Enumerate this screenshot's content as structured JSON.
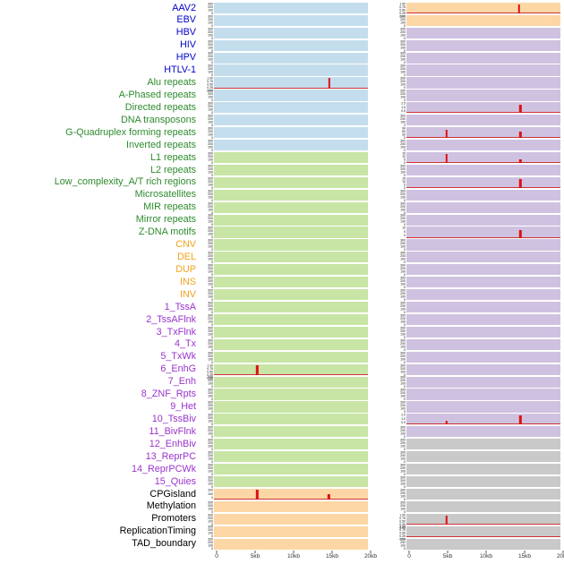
{
  "colors": {
    "label": {
      "virus": "#0000cc",
      "repeat": "#2d8a2d",
      "sv": "#f2a11c",
      "chromatin": "#9933cc",
      "other": "#000000"
    },
    "track_bg": {
      "blue": "#c4dded",
      "green": "#c8e5a5",
      "orange": "#fcd7a5",
      "purple": "#cfc2e0",
      "gray": "#c9c9c9"
    },
    "spike": "#dd1111",
    "baseline": "#cc3333"
  },
  "tick_sets": {
    "frac": [
      "1.00",
      "0.75",
      "0.50",
      "0.25",
      "0.00"
    ],
    "c300": [
      "300",
      "200",
      "100",
      "0"
    ],
    "c200": [
      "200",
      "100",
      "0"
    ],
    "s25": [
      "2.5",
      "1.5",
      "0.5"
    ],
    "s90": [
      "90",
      "60",
      "30",
      "0"
    ],
    "s15": [
      "15",
      "10",
      "5",
      "0"
    ],
    "s10": [
      "10",
      "5",
      "0"
    ],
    "s20": [
      "2.0",
      "1.0",
      "0.0"
    ]
  },
  "chart_data": {
    "type": "bar",
    "subtype": "genomic-feature-signal-tracks",
    "x_range_kb": [
      0,
      20
    ],
    "x_axis": {
      "ticks": [
        {
          "pos": 0,
          "label": "0"
        },
        {
          "pos": 5,
          "label": "5kb"
        },
        {
          "pos": 10,
          "label": "10kb"
        },
        {
          "pos": 15,
          "label": "15kb"
        },
        {
          "pos": 20,
          "label": "20kb"
        }
      ]
    },
    "rows": [
      {
        "label": "AAV2",
        "group": "virus",
        "left": {
          "bg": "blue",
          "ticks": "c300",
          "spikes": []
        },
        "right": {
          "bg": "orange",
          "ticks": "frac",
          "spikes": [
            {
              "x": 14.6,
              "h": 0.85
            }
          ]
        }
      },
      {
        "label": "EBV",
        "group": "virus",
        "left": {
          "bg": "blue",
          "ticks": "c300",
          "spikes": []
        },
        "right": {
          "bg": "orange",
          "ticks": "c300",
          "spikes": []
        }
      },
      {
        "label": "HBV",
        "group": "virus",
        "left": {
          "bg": "blue",
          "ticks": "c300",
          "spikes": []
        },
        "right": {
          "bg": "purple",
          "ticks": "c300",
          "spikes": []
        }
      },
      {
        "label": "HIV",
        "group": "virus",
        "left": {
          "bg": "blue",
          "ticks": "c300",
          "spikes": []
        },
        "right": {
          "bg": "purple",
          "ticks": "c300",
          "spikes": []
        }
      },
      {
        "label": "HPV",
        "group": "virus",
        "left": {
          "bg": "blue",
          "ticks": "c300",
          "spikes": []
        },
        "right": {
          "bg": "purple",
          "ticks": "c300",
          "spikes": []
        }
      },
      {
        "label": "HTLV-1",
        "group": "virus",
        "left": {
          "bg": "blue",
          "ticks": "c300",
          "spikes": []
        },
        "right": {
          "bg": "purple",
          "ticks": "c300",
          "spikes": []
        }
      },
      {
        "label": "Alu repeats",
        "group": "repeat",
        "left": {
          "bg": "blue",
          "ticks": "frac",
          "spikes": [
            {
              "x": 15.0,
              "h": 0.92
            }
          ]
        },
        "right": {
          "bg": "purple",
          "ticks": "c300",
          "spikes": []
        }
      },
      {
        "label": "A-Phased repeats",
        "group": "repeat",
        "left": {
          "bg": "blue",
          "ticks": "c300",
          "spikes": []
        },
        "right": {
          "bg": "purple",
          "ticks": "c300",
          "spikes": []
        }
      },
      {
        "label": "Directed repeats",
        "group": "repeat",
        "left": {
          "bg": "blue",
          "ticks": "c300",
          "spikes": []
        },
        "right": {
          "bg": "purple",
          "ticks": "s25",
          "spikes": [
            {
              "x": 14.8,
              "h": 0.8
            }
          ]
        }
      },
      {
        "label": "DNA transposons",
        "group": "repeat",
        "left": {
          "bg": "blue",
          "ticks": "c300",
          "spikes": []
        },
        "right": {
          "bg": "purple",
          "ticks": "c300",
          "spikes": []
        }
      },
      {
        "label": "G-Quadruplex forming repeats",
        "group": "repeat",
        "left": {
          "bg": "blue",
          "ticks": "c300",
          "spikes": []
        },
        "right": {
          "bg": "purple",
          "ticks": "s90",
          "spikes": [
            {
              "x": 5.2,
              "h": 0.8
            },
            {
              "x": 14.8,
              "h": 0.62
            }
          ]
        }
      },
      {
        "label": "Inverted repeats",
        "group": "repeat",
        "left": {
          "bg": "blue",
          "ticks": "c300",
          "spikes": []
        },
        "right": {
          "bg": "purple",
          "ticks": "c300",
          "spikes": []
        }
      },
      {
        "label": "L1 repeats",
        "group": "repeat",
        "left": {
          "bg": "green",
          "ticks": "c300",
          "spikes": []
        },
        "right": {
          "bg": "purple",
          "ticks": "s15",
          "spikes": [
            {
              "x": 5.2,
              "h": 0.8
            },
            {
              "x": 14.8,
              "h": 0.3
            }
          ]
        }
      },
      {
        "label": "L2 repeats",
        "group": "repeat",
        "left": {
          "bg": "green",
          "ticks": "c300",
          "spikes": []
        },
        "right": {
          "bg": "purple",
          "ticks": "c300",
          "spikes": []
        }
      },
      {
        "label": "Low_complexity_A/T rich regions",
        "group": "repeat",
        "left": {
          "bg": "green",
          "ticks": "c300",
          "spikes": []
        },
        "right": {
          "bg": "purple",
          "ticks": "s15",
          "spikes": [
            {
              "x": 14.8,
              "h": 0.8
            }
          ]
        }
      },
      {
        "label": "Microsatellites",
        "group": "repeat",
        "left": {
          "bg": "green",
          "ticks": "c300",
          "spikes": []
        },
        "right": {
          "bg": "purple",
          "ticks": "c300",
          "spikes": []
        }
      },
      {
        "label": "MIR repeats",
        "group": "repeat",
        "left": {
          "bg": "green",
          "ticks": "c300",
          "spikes": []
        },
        "right": {
          "bg": "purple",
          "ticks": "c300",
          "spikes": []
        }
      },
      {
        "label": "Mirror repeats",
        "group": "repeat",
        "left": {
          "bg": "green",
          "ticks": "c300",
          "spikes": []
        },
        "right": {
          "bg": "purple",
          "ticks": "c300",
          "spikes": []
        }
      },
      {
        "label": "Z-DNA motifs",
        "group": "repeat",
        "left": {
          "bg": "green",
          "ticks": "c300",
          "spikes": []
        },
        "right": {
          "bg": "purple",
          "ticks": "s10",
          "spikes": [
            {
              "x": 14.8,
              "h": 0.75
            }
          ]
        }
      },
      {
        "label": "CNV",
        "group": "sv",
        "left": {
          "bg": "green",
          "ticks": "c300",
          "spikes": []
        },
        "right": {
          "bg": "purple",
          "ticks": "c300",
          "spikes": []
        }
      },
      {
        "label": "DEL",
        "group": "sv",
        "left": {
          "bg": "green",
          "ticks": "c300",
          "spikes": []
        },
        "right": {
          "bg": "purple",
          "ticks": "c300",
          "spikes": []
        }
      },
      {
        "label": "DUP",
        "group": "sv",
        "left": {
          "bg": "green",
          "ticks": "c300",
          "spikes": []
        },
        "right": {
          "bg": "purple",
          "ticks": "c300",
          "spikes": []
        }
      },
      {
        "label": "INS",
        "group": "sv",
        "left": {
          "bg": "green",
          "ticks": "c300",
          "spikes": []
        },
        "right": {
          "bg": "purple",
          "ticks": "c300",
          "spikes": []
        }
      },
      {
        "label": "INV",
        "group": "sv",
        "left": {
          "bg": "green",
          "ticks": "c300",
          "spikes": []
        },
        "right": {
          "bg": "purple",
          "ticks": "c300",
          "spikes": []
        }
      },
      {
        "label": "1_TssA",
        "group": "chromatin",
        "left": {
          "bg": "green",
          "ticks": "c300",
          "spikes": []
        },
        "right": {
          "bg": "purple",
          "ticks": "c300",
          "spikes": []
        }
      },
      {
        "label": "2_TssAFlnk",
        "group": "chromatin",
        "left": {
          "bg": "green",
          "ticks": "c300",
          "spikes": []
        },
        "right": {
          "bg": "purple",
          "ticks": "c300",
          "spikes": []
        }
      },
      {
        "label": "3_TxFlnk",
        "group": "chromatin",
        "left": {
          "bg": "green",
          "ticks": "c300",
          "spikes": []
        },
        "right": {
          "bg": "purple",
          "ticks": "c300",
          "spikes": []
        }
      },
      {
        "label": "4_Tx",
        "group": "chromatin",
        "left": {
          "bg": "green",
          "ticks": "c300",
          "spikes": []
        },
        "right": {
          "bg": "purple",
          "ticks": "c300",
          "spikes": []
        }
      },
      {
        "label": "5_TxWk",
        "group": "chromatin",
        "left": {
          "bg": "green",
          "ticks": "c300",
          "spikes": []
        },
        "right": {
          "bg": "purple",
          "ticks": "c300",
          "spikes": []
        }
      },
      {
        "label": "6_EnhG",
        "group": "chromatin",
        "left": {
          "bg": "green",
          "ticks": "frac",
          "spikes": [
            {
              "x": 5.6,
              "h": 0.85
            }
          ]
        },
        "right": {
          "bg": "purple",
          "ticks": "c300",
          "spikes": []
        }
      },
      {
        "label": "7_Enh",
        "group": "chromatin",
        "left": {
          "bg": "green",
          "ticks": "c300",
          "spikes": []
        },
        "right": {
          "bg": "purple",
          "ticks": "c300",
          "spikes": []
        }
      },
      {
        "label": "8_ZNF_Rpts",
        "group": "chromatin",
        "left": {
          "bg": "green",
          "ticks": "c300",
          "spikes": []
        },
        "right": {
          "bg": "purple",
          "ticks": "c300",
          "spikes": []
        }
      },
      {
        "label": "9_Het",
        "group": "chromatin",
        "left": {
          "bg": "green",
          "ticks": "c300",
          "spikes": []
        },
        "right": {
          "bg": "purple",
          "ticks": "c300",
          "spikes": []
        }
      },
      {
        "label": "10_TssBiv",
        "group": "chromatin",
        "left": {
          "bg": "green",
          "ticks": "c300",
          "spikes": []
        },
        "right": {
          "bg": "purple",
          "ticks": "s20",
          "spikes": [
            {
              "x": 5.2,
              "h": 0.4
            },
            {
              "x": 14.8,
              "h": 0.85
            }
          ]
        }
      },
      {
        "label": "11_BivFlnk",
        "group": "chromatin",
        "left": {
          "bg": "green",
          "ticks": "c300",
          "spikes": []
        },
        "right": {
          "bg": "purple",
          "ticks": "c300",
          "spikes": []
        }
      },
      {
        "label": "12_EnhBiv",
        "group": "chromatin",
        "left": {
          "bg": "green",
          "ticks": "c300",
          "spikes": []
        },
        "right": {
          "bg": "gray",
          "ticks": "c300",
          "spikes": []
        }
      },
      {
        "label": "13_ReprPC",
        "group": "chromatin",
        "left": {
          "bg": "green",
          "ticks": "c300",
          "spikes": []
        },
        "right": {
          "bg": "gray",
          "ticks": "c300",
          "spikes": []
        }
      },
      {
        "label": "14_ReprPCWk",
        "group": "chromatin",
        "left": {
          "bg": "green",
          "ticks": "c300",
          "spikes": []
        },
        "right": {
          "bg": "gray",
          "ticks": "c300",
          "spikes": []
        }
      },
      {
        "label": "15_Quies",
        "group": "chromatin",
        "left": {
          "bg": "green",
          "ticks": "c300",
          "spikes": []
        },
        "right": {
          "bg": "gray",
          "ticks": "c300",
          "spikes": []
        }
      },
      {
        "label": "CPGisland",
        "group": "other",
        "left": {
          "bg": "orange",
          "ticks": "c200",
          "spikes": [
            {
              "x": 5.6,
              "h": 0.92
            },
            {
              "x": 14.9,
              "h": 0.5
            }
          ]
        },
        "right": {
          "bg": "gray",
          "ticks": "c300",
          "spikes": []
        }
      },
      {
        "label": "Methylation",
        "group": "other",
        "left": {
          "bg": "orange",
          "ticks": "c300",
          "spikes": []
        },
        "right": {
          "bg": "gray",
          "ticks": "c300",
          "spikes": []
        }
      },
      {
        "label": "Promoters",
        "group": "other",
        "left": {
          "bg": "orange",
          "ticks": "c300",
          "spikes": []
        },
        "right": {
          "bg": "gray",
          "ticks": "frac",
          "spikes": [
            {
              "x": 5.2,
              "h": 0.8
            }
          ]
        }
      },
      {
        "label": "ReplicationTiming",
        "group": "other",
        "left": {
          "bg": "orange",
          "ticks": "c300",
          "spikes": []
        },
        "right": {
          "bg": "gray",
          "ticks": "frac",
          "spikes": [],
          "baseline": true
        }
      },
      {
        "label": "TAD_boundary",
        "group": "other",
        "left": {
          "bg": "orange",
          "ticks": "c300",
          "spikes": []
        },
        "right": {
          "bg": "gray",
          "ticks": "c300",
          "spikes": []
        }
      }
    ]
  }
}
